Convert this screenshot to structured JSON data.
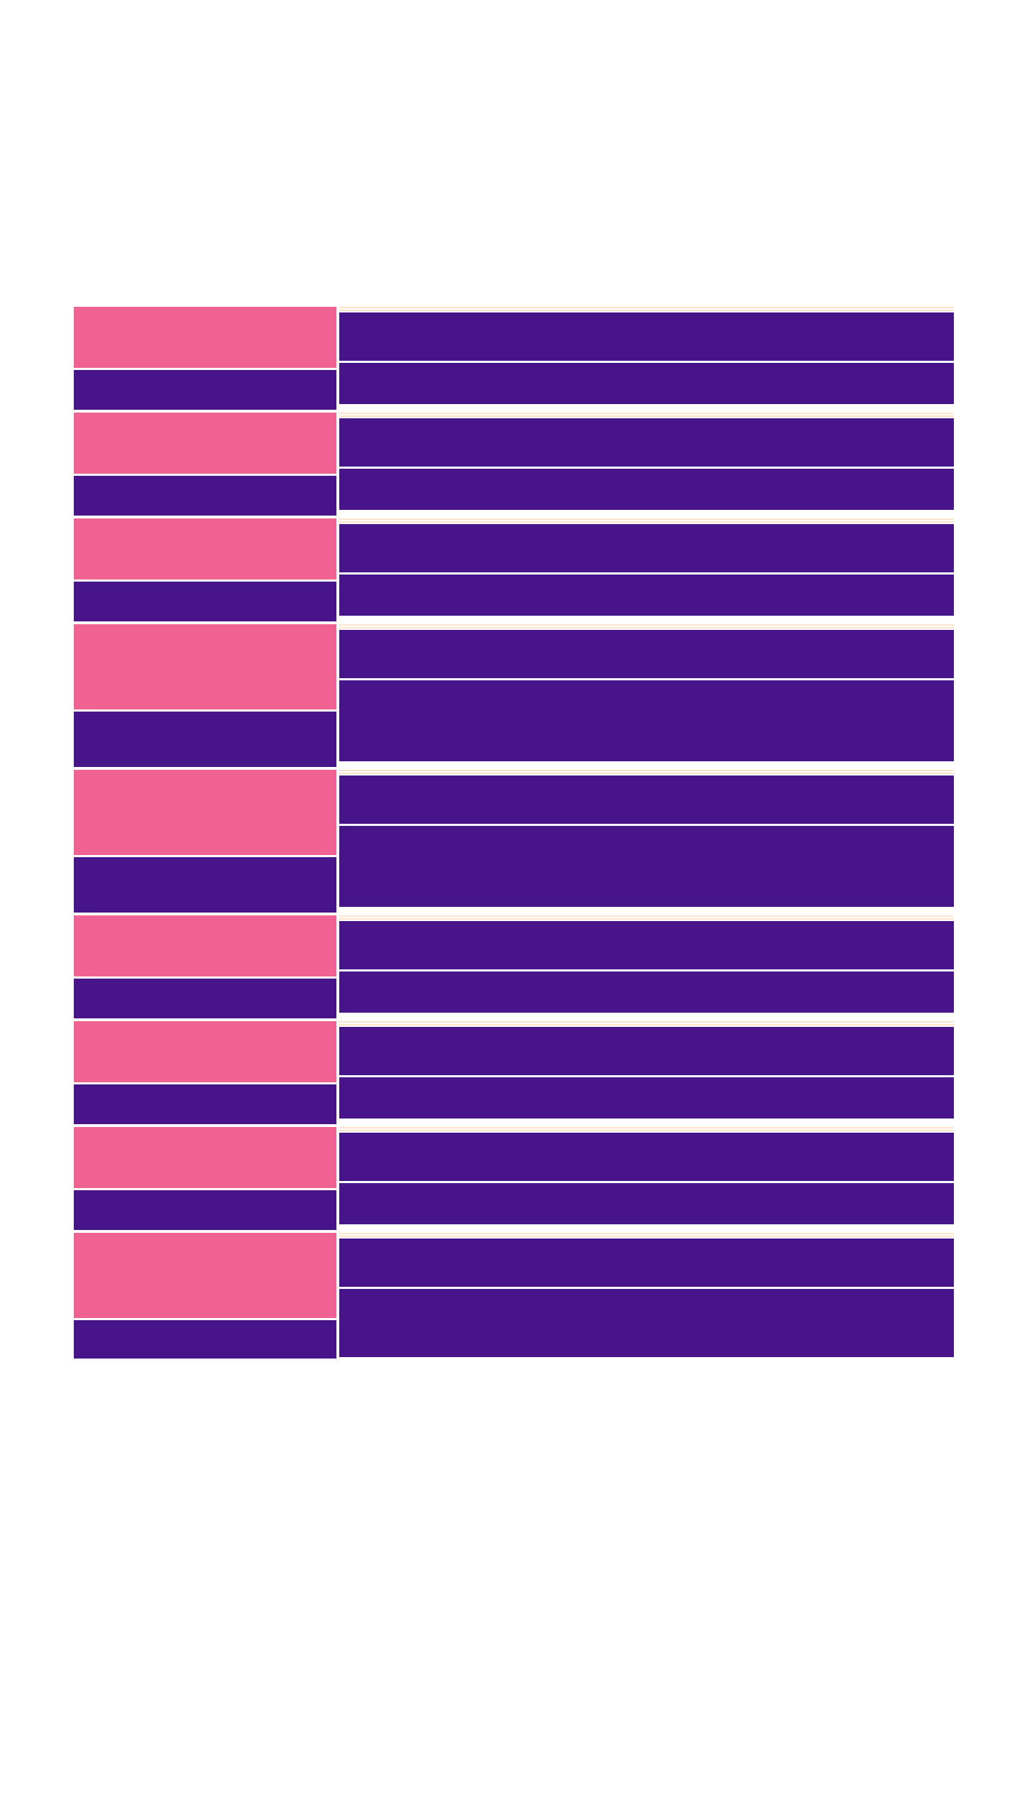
{
  "theme": {
    "background": "#ffffff",
    "pink": "#ef6292",
    "purple": "#48148a",
    "stripe": "#fde3c9"
  },
  "rows": [
    {
      "size": "short"
    },
    {
      "size": "short"
    },
    {
      "size": "short"
    },
    {
      "size": "tall"
    },
    {
      "size": "tall"
    },
    {
      "size": "short"
    },
    {
      "size": "short"
    },
    {
      "size": "short"
    },
    {
      "size": "last"
    }
  ]
}
